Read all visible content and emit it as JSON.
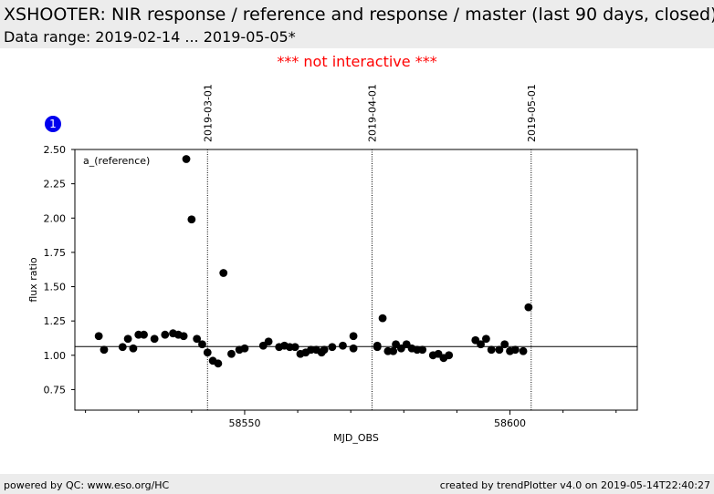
{
  "header": {
    "title": "XSHOOTER: NIR response / reference and response / master (last 90 days, closed)",
    "subtitle": "Data range: 2019-02-14 ... 2019-05-05*"
  },
  "notice": "*** not interactive ***",
  "footer": {
    "left": "powered by QC: www.eso.org/HC",
    "right": "created by trendPlotter v4.0 on 2019-05-14T22:40:27"
  },
  "colors": {
    "notice": "#ff0000",
    "badge": "#0000ee",
    "points": "#000000",
    "header_bg": "#ececec"
  },
  "chart_data": {
    "type": "scatter",
    "badge": "1",
    "panel_label": "a_(reference)",
    "xlabel": "MJD_OBS",
    "ylabel": "flux ratio",
    "xlim": [
      58518,
      58624
    ],
    "ylim": [
      0.6,
      2.5
    ],
    "xticks": [
      58550,
      58600
    ],
    "yticks": [
      0.75,
      1.0,
      1.25,
      1.5,
      1.75,
      2.0,
      2.25,
      2.5
    ],
    "ytick_labels": [
      "0.75",
      "1.00",
      "1.25",
      "1.50",
      "1.75",
      "2.00",
      "2.25",
      "2.50"
    ],
    "reference_line": 1.063,
    "date_markers": [
      {
        "label": "2019-03-01",
        "x": 58543.0
      },
      {
        "label": "2019-04-01",
        "x": 58574.0
      },
      {
        "label": "2019-05-01",
        "x": 58604.0
      }
    ],
    "points": [
      [
        58522.5,
        1.14
      ],
      [
        58523.5,
        1.04
      ],
      [
        58527.0,
        1.06
      ],
      [
        58528.0,
        1.12
      ],
      [
        58529.0,
        1.05
      ],
      [
        58530.0,
        1.15
      ],
      [
        58531.0,
        1.15
      ],
      [
        58533.0,
        1.12
      ],
      [
        58535.0,
        1.15
      ],
      [
        58536.5,
        1.16
      ],
      [
        58537.5,
        1.15
      ],
      [
        58538.5,
        1.14
      ],
      [
        58539.0,
        2.43
      ],
      [
        58540.0,
        1.99
      ],
      [
        58541.0,
        1.12
      ],
      [
        58542.0,
        1.08
      ],
      [
        58543.0,
        1.02
      ],
      [
        58544.0,
        0.96
      ],
      [
        58545.0,
        0.94
      ],
      [
        58546.0,
        1.6
      ],
      [
        58547.5,
        1.01
      ],
      [
        58549.0,
        1.04
      ],
      [
        58550.0,
        1.05
      ],
      [
        58553.5,
        1.07
      ],
      [
        58554.5,
        1.1
      ],
      [
        58556.5,
        1.06
      ],
      [
        58557.5,
        1.07
      ],
      [
        58558.5,
        1.06
      ],
      [
        58559.5,
        1.06
      ],
      [
        58560.5,
        1.01
      ],
      [
        58561.5,
        1.02
      ],
      [
        58562.5,
        1.04
      ],
      [
        58563.5,
        1.04
      ],
      [
        58564.5,
        1.02
      ],
      [
        58565.0,
        1.04
      ],
      [
        58566.5,
        1.06
      ],
      [
        58568.5,
        1.07
      ],
      [
        58570.5,
        1.14
      ],
      [
        58570.5,
        1.05
      ],
      [
        58575.0,
        1.06
      ],
      [
        58575.0,
        1.07
      ],
      [
        58576.0,
        1.27
      ],
      [
        58577.0,
        1.03
      ],
      [
        58578.0,
        1.03
      ],
      [
        58578.5,
        1.08
      ],
      [
        58579.5,
        1.05
      ],
      [
        58580.5,
        1.08
      ],
      [
        58581.5,
        1.05
      ],
      [
        58582.5,
        1.04
      ],
      [
        58583.5,
        1.04
      ],
      [
        58585.5,
        1.0
      ],
      [
        58586.5,
        1.01
      ],
      [
        58587.5,
        0.98
      ],
      [
        58588.5,
        1.0
      ],
      [
        58593.5,
        1.11
      ],
      [
        58594.5,
        1.08
      ],
      [
        58595.5,
        1.12
      ],
      [
        58596.5,
        1.04
      ],
      [
        58598.0,
        1.04
      ],
      [
        58599.0,
        1.08
      ],
      [
        58600.0,
        1.03
      ],
      [
        58601.0,
        1.04
      ],
      [
        58602.5,
        1.03
      ],
      [
        58603.5,
        1.35
      ]
    ]
  }
}
